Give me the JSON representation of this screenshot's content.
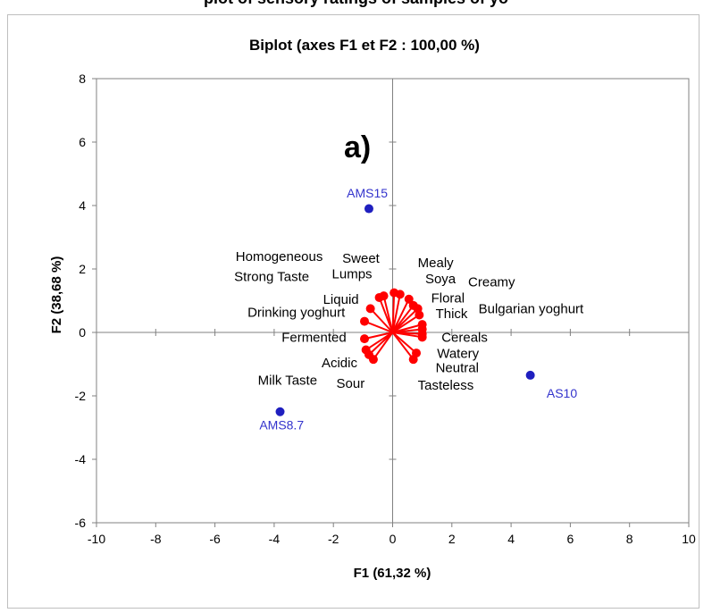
{
  "top_text": "plot of sensory ratings of samples of yo",
  "chart_data": {
    "type": "scatter",
    "title": "Biplot (axes F1 et F2 : 100,00 %)",
    "xlabel": "F1 (61,32 %)",
    "ylabel": "F2 (38,68 %)",
    "xlim": [
      -10,
      10
    ],
    "ylim": [
      -6,
      8
    ],
    "xticks": [
      "-10",
      "-8",
      "-6",
      "-4",
      "-2",
      "0",
      "2",
      "4",
      "6",
      "8",
      "10"
    ],
    "yticks": [
      "-6",
      "-4",
      "-2",
      "0",
      "2",
      "4",
      "6",
      "8"
    ],
    "panel_label": "a)",
    "grid": false,
    "legend": "none",
    "colors": {
      "observation": "#1f1fbf",
      "observation_label": "#3333cc",
      "variable": "#ff0000",
      "axis": "#808080",
      "text": "#000000"
    },
    "observations": [
      {
        "name": "AMS15",
        "x": -0.8,
        "y": 3.9
      },
      {
        "name": "AMS8.7",
        "x": -3.8,
        "y": -2.5
      },
      {
        "name": "AS10",
        "x": 4.65,
        "y": -1.35
      }
    ],
    "variables": [
      {
        "name": "Homogeneous",
        "x": -0.3,
        "y": 1.15
      },
      {
        "name": "Sweet",
        "x": 0.05,
        "y": 1.25
      },
      {
        "name": "Lumps",
        "x": 0.25,
        "y": 1.2
      },
      {
        "name": "Strong Taste",
        "x": -0.45,
        "y": 1.1
      },
      {
        "name": "Mealy",
        "x": 0.55,
        "y": 1.05
      },
      {
        "name": "Soya",
        "x": 0.7,
        "y": 0.85
      },
      {
        "name": "Creamy",
        "x": 0.85,
        "y": 0.75
      },
      {
        "name": "Liquid",
        "x": -0.75,
        "y": 0.75
      },
      {
        "name": "Floral",
        "x": 0.9,
        "y": 0.55
      },
      {
        "name": "Drinking yoghurt",
        "x": -0.95,
        "y": 0.35
      },
      {
        "name": "Thick",
        "x": 1.0,
        "y": 0.25
      },
      {
        "name": "Bulgarian yoghurt",
        "x": 1.0,
        "y": 0.1
      },
      {
        "name": "Cereals",
        "x": 1.0,
        "y": -0.05
      },
      {
        "name": "Fermented",
        "x": -0.95,
        "y": -0.2
      },
      {
        "name": "Watery",
        "x": 1.0,
        "y": -0.15
      },
      {
        "name": "Neutral",
        "x": 0.8,
        "y": -0.65
      },
      {
        "name": "Acidic",
        "x": -0.9,
        "y": -0.55
      },
      {
        "name": "Tasteless",
        "x": 0.7,
        "y": -0.85
      },
      {
        "name": "Sour",
        "x": -0.65,
        "y": -0.85
      },
      {
        "name": "Milk Taste",
        "x": -0.8,
        "y": -0.7
      }
    ],
    "variable_labels": [
      {
        "text": "Homogeneous",
        "x": -5.3,
        "y": 2.25
      },
      {
        "text": "Sweet",
        "x": -1.7,
        "y": 2.2
      },
      {
        "text": "Lumps",
        "x": -2.05,
        "y": 1.7
      },
      {
        "text": "Strong Taste",
        "x": -5.35,
        "y": 1.62
      },
      {
        "text": "Mealy",
        "x": 0.85,
        "y": 2.05
      },
      {
        "text": "Soya",
        "x": 1.1,
        "y": 1.55
      },
      {
        "text": "Creamy",
        "x": 2.55,
        "y": 1.45
      },
      {
        "text": "Liquid",
        "x": -2.35,
        "y": 0.9
      },
      {
        "text": "Floral",
        "x": 1.3,
        "y": 0.95
      },
      {
        "text": "Drinking yoghurt",
        "x": -4.9,
        "y": 0.5
      },
      {
        "text": "Thick",
        "x": 1.45,
        "y": 0.45
      },
      {
        "text": "Bulgarian yoghurt",
        "x": 2.9,
        "y": 0.6
      },
      {
        "text": "Cereals",
        "x": 1.65,
        "y": -0.3
      },
      {
        "text": "Fermented",
        "x": -3.75,
        "y": -0.3
      },
      {
        "text": "Watery",
        "x": 1.5,
        "y": -0.8
      },
      {
        "text": "Neutral",
        "x": 1.45,
        "y": -1.25
      },
      {
        "text": "Acidic",
        "x": -2.4,
        "y": -1.1
      },
      {
        "text": "Tasteless",
        "x": 0.85,
        "y": -1.8
      },
      {
        "text": "Sour",
        "x": -1.9,
        "y": -1.75
      },
      {
        "text": "Milk Taste",
        "x": -4.55,
        "y": -1.65
      }
    ],
    "observation_labels": [
      {
        "text": "AMS15",
        "x": -1.55,
        "y": 4.25
      },
      {
        "text": "AMS8.7",
        "x": -4.5,
        "y": -3.05
      },
      {
        "text": "AS10",
        "x": 5.2,
        "y": -2.05
      }
    ]
  }
}
